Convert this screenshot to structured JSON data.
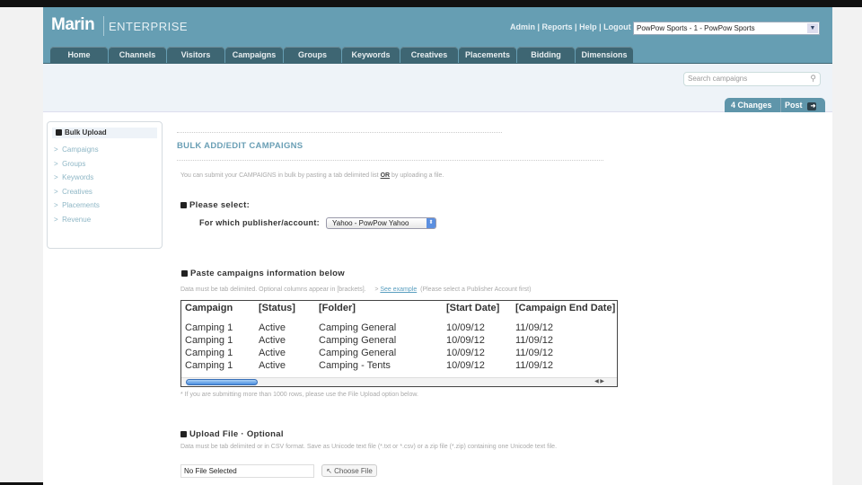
{
  "header": {
    "logo": "Marin",
    "product": "ENTERPRISE",
    "links": [
      "Admin",
      "Reports",
      "Help",
      "Logout"
    ],
    "account": "PowPow Sports - 1 - PowPow Sports"
  },
  "tabs": [
    "Home",
    "Channels",
    "Visitors",
    "Campaigns",
    "Groups",
    "Keywords",
    "Creatives",
    "Placements",
    "Bidding",
    "Dimensions"
  ],
  "search": {
    "placeholder": "Search campaigns"
  },
  "changes": {
    "label": "4 Changes",
    "post": "Post"
  },
  "sidebar": {
    "title": "Bulk Upload",
    "items": [
      "Campaigns",
      "Groups",
      "Keywords",
      "Creatives",
      "Placements",
      "Revenue"
    ]
  },
  "main": {
    "title": "BULK ADD/EDIT CAMPAIGNS",
    "intro_a": "You can submit your CAMPAIGNS in bulk by pasting a tab delimited list",
    "intro_or": "OR",
    "intro_b": "by uploading a file.",
    "select_heading": "Please select:",
    "publisher_label": "For which publisher/account:",
    "publisher_value": "Yahoo - PowPow Yahoo",
    "paste_heading": "Paste campaigns information below",
    "paste_note": "Data must be tab delimited. Optional columns appear in [brackets].",
    "see_example": "See example",
    "see_note": "(Please select a Publisher Account first)",
    "columns": [
      "Campaign",
      "[Status]",
      "[Folder]",
      "[Start Date]",
      "[Campaign End Date]"
    ],
    "rows": [
      [
        "Camping 1",
        "Active",
        "Camping General",
        "10/09/12",
        "11/09/12"
      ],
      [
        "Camping 1",
        "Active",
        "Camping General",
        "10/09/12",
        "11/09/12"
      ],
      [
        "Camping 1",
        "Active",
        "Camping General",
        "10/09/12",
        "11/09/12"
      ],
      [
        "Camping 1",
        "Active",
        "Camping - Tents",
        "10/09/12",
        "11/09/12"
      ]
    ],
    "rows_note": "* If you are submitting more than 1000 rows, please use the File Upload option below.",
    "upload_heading": "Upload File · Optional",
    "upload_note": "Data must be tab delimited or in CSV format. Save as Unicode text file (*.txt or *.csv) or a zip file (*.zip) containing one Unicode text file.",
    "file_value": "No File Selected",
    "choose_file": "Choose File"
  }
}
